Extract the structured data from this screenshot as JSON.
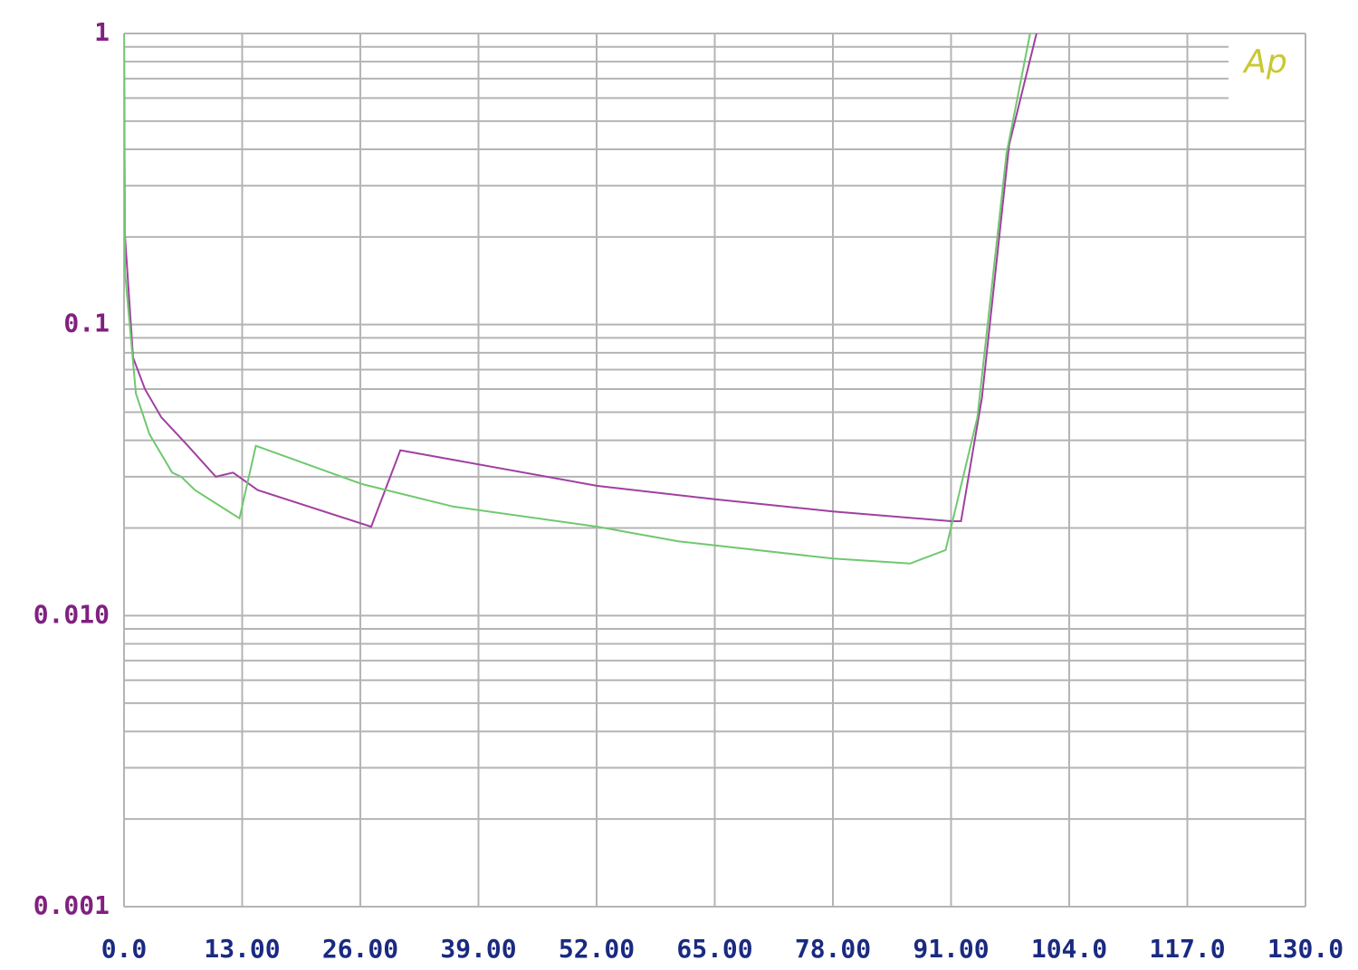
{
  "chart_data": {
    "type": "line",
    "logo": "Ap",
    "logo_color": "#c8c832",
    "ylog": true,
    "grid": true,
    "minor_grid": true,
    "xlim": [
      0,
      130
    ],
    "ylim": [
      0.001,
      1
    ],
    "xticks": [
      {
        "value": 0,
        "label": "0.0"
      },
      {
        "value": 13,
        "label": "13.00"
      },
      {
        "value": 26,
        "label": "26.00"
      },
      {
        "value": 39,
        "label": "39.00"
      },
      {
        "value": 52,
        "label": "52.00"
      },
      {
        "value": 65,
        "label": "65.00"
      },
      {
        "value": 78,
        "label": "78.00"
      },
      {
        "value": 91,
        "label": "91.00"
      },
      {
        "value": 104,
        "label": "104.0"
      },
      {
        "value": 117,
        "label": "117.0"
      },
      {
        "value": 130,
        "label": "130.0"
      }
    ],
    "yticks": [
      0.001,
      {
        "value": 0.01,
        "label": "0.010"
      },
      0.1,
      1
    ],
    "x_tick_color": "#1a2a80",
    "y_tick_color": "#802080",
    "series": [
      {
        "color": "#a040a0",
        "x": [
          0,
          0.1,
          1.0,
          2.3,
          4.1,
          6.8,
          10.1,
          12,
          14.7,
          27.2,
          30.4,
          52.1,
          65,
          78,
          91,
          92.1,
          94.4,
          97.4,
          100.4
        ],
        "values": [
          1,
          0.203,
          0.077,
          0.06,
          0.048,
          0.039,
          0.03,
          0.031,
          0.027,
          0.0202,
          0.037,
          0.0279,
          0.0251,
          0.0228,
          0.0211,
          0.0211,
          0.056,
          0.415,
          1
        ]
      },
      {
        "color": "#70c870",
        "x": [
          0,
          0.1,
          1.3,
          2.8,
          5.3,
          6.3,
          7.8,
          12.7,
          14.5,
          26.2,
          36.2,
          52.1,
          61,
          78,
          86.5,
          90.4,
          93.9,
          97.1,
          99.7
        ],
        "values": [
          1,
          0.152,
          0.058,
          0.042,
          0.031,
          0.03,
          0.027,
          0.0216,
          0.0383,
          0.0283,
          0.0237,
          0.0202,
          0.018,
          0.0157,
          0.0151,
          0.0168,
          0.048,
          0.386,
          1
        ]
      }
    ]
  }
}
